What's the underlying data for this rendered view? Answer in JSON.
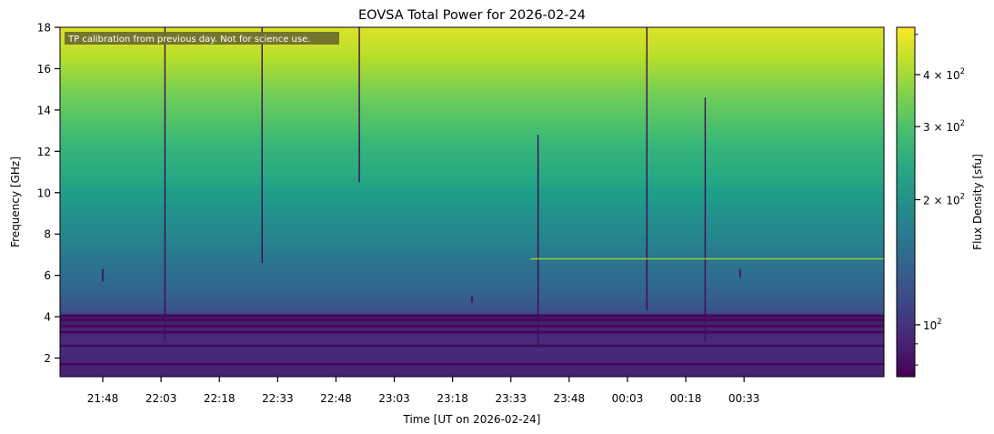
{
  "chart_data": {
    "type": "heatmap",
    "title": "EOVSA Total Power for 2026-02-24",
    "xlabel": "Time [UT on 2026-02-24]",
    "ylabel": "Frequency [GHz]",
    "xlim": [
      "21:37",
      "01:09"
    ],
    "ylim": [
      1.1,
      18.0
    ],
    "x_ticks": [
      "21:48",
      "22:03",
      "22:18",
      "22:33",
      "22:48",
      "23:03",
      "23:18",
      "23:33",
      "23:48",
      "00:03",
      "00:18",
      "00:33"
    ],
    "y_ticks": [
      2,
      4,
      6,
      8,
      10,
      12,
      14,
      16,
      18
    ],
    "annotation": "TP calibration from previous day. Not for science use.",
    "colorbar": {
      "label": "Flux Density [sfu]",
      "scale": "log",
      "range": [
        75,
        520
      ],
      "tick_labels": [
        {
          "value": 400,
          "base": "4 × 10",
          "exp": "2"
        },
        {
          "value": 300,
          "base": "3 × 10",
          "exp": "2"
        },
        {
          "value": 200,
          "base": "2 × 10",
          "exp": "2"
        },
        {
          "value": 100,
          "base": "10",
          "exp": "2"
        }
      ],
      "minor_ticks": [
        80,
        90,
        500
      ]
    },
    "frequency_profile": [
      {
        "ghz": 1.1,
        "sfu": 90
      },
      {
        "ghz": 2.7,
        "sfu": 95
      },
      {
        "ghz": 3.4,
        "sfu": 92
      },
      {
        "ghz": 4.1,
        "sfu": 85
      },
      {
        "ghz": 4.2,
        "sfu": 120
      },
      {
        "ghz": 5.0,
        "sfu": 135
      },
      {
        "ghz": 6.0,
        "sfu": 150
      },
      {
        "ghz": 7.0,
        "sfu": 165
      },
      {
        "ghz": 8.0,
        "sfu": 185
      },
      {
        "ghz": 9.0,
        "sfu": 200
      },
      {
        "ghz": 10.0,
        "sfu": 220
      },
      {
        "ghz": 11.0,
        "sfu": 245
      },
      {
        "ghz": 12.0,
        "sfu": 265
      },
      {
        "ghz": 13.0,
        "sfu": 290
      },
      {
        "ghz": 14.0,
        "sfu": 320
      },
      {
        "ghz": 15.0,
        "sfu": 350
      },
      {
        "ghz": 16.0,
        "sfu": 395
      },
      {
        "ghz": 17.0,
        "sfu": 440
      },
      {
        "ghz": 18.0,
        "sfu": 470
      }
    ],
    "features": {
      "dropouts": [
        {
          "time": "22:04",
          "from_ghz": 2.8,
          "to_ghz": 18.0
        },
        {
          "time": "22:29",
          "from_ghz": 6.6,
          "to_ghz": 18.0
        },
        {
          "time": "22:54",
          "from_ghz": 10.5,
          "to_ghz": 18.0
        },
        {
          "time": "23:40",
          "from_ghz": 2.5,
          "to_ghz": 12.8
        },
        {
          "time": "00:08",
          "from_ghz": 4.3,
          "to_ghz": 18.0
        },
        {
          "time": "00:23",
          "from_ghz": 2.8,
          "to_ghz": 14.6
        }
      ],
      "short_dropouts": [
        {
          "time": "21:48",
          "from_ghz": 5.7,
          "to_ghz": 6.3
        },
        {
          "time": "23:23",
          "from_ghz": 4.7,
          "to_ghz": 5.0
        },
        {
          "time": "00:32",
          "from_ghz": 5.9,
          "to_ghz": 6.3
        }
      ],
      "bright_line": {
        "ghz": 6.8,
        "from": "23:38",
        "to": "01:09",
        "sfu": 400
      },
      "dark_bands_ghz": [
        4.05,
        3.85,
        3.55,
        3.25,
        2.6,
        1.7
      ]
    }
  }
}
